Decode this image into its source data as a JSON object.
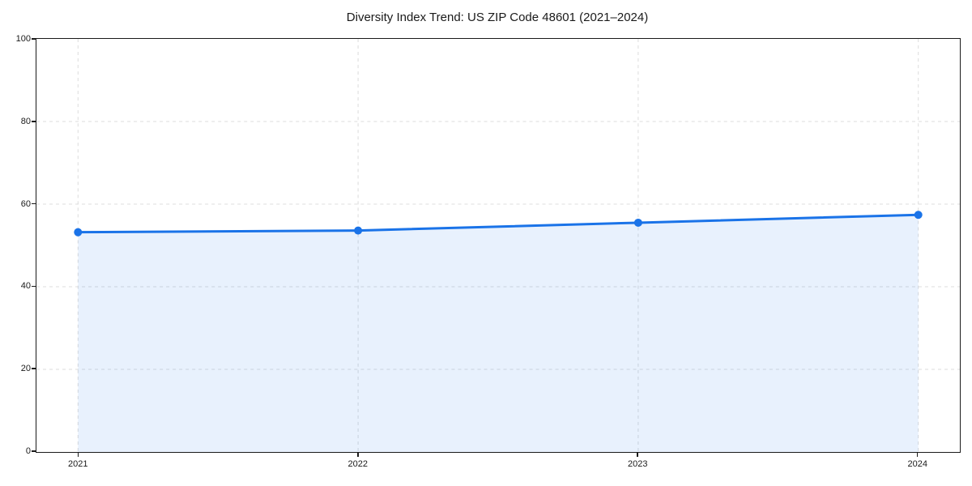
{
  "figure": {
    "background_color": "#ffffff",
    "text_color": "#1a1a1a",
    "spine_color": "#1a1a1a"
  },
  "chart_data": {
    "type": "line",
    "title": "Diversity Index Trend: US ZIP Code 48601 (2021–2024)",
    "categories": [
      "2021",
      "2022",
      "2023",
      "2024"
    ],
    "series": [
      {
        "name": "Diversity Index",
        "values": [
          53.2,
          53.6,
          55.5,
          57.4
        ]
      }
    ],
    "xlabel": "",
    "ylabel": "",
    "ylim": [
      0,
      100
    ],
    "yticks": [
      0,
      20,
      40,
      60,
      80,
      100
    ],
    "grid": true,
    "grid_style": "dashed",
    "grid_color": "#dcdcdc",
    "legend_position": "none",
    "line_color": "#1a73e8",
    "marker": "circle",
    "marker_color": "#1a73e8",
    "area_fill": true,
    "fill_color": "rgba(26,115,232,0.10)"
  }
}
